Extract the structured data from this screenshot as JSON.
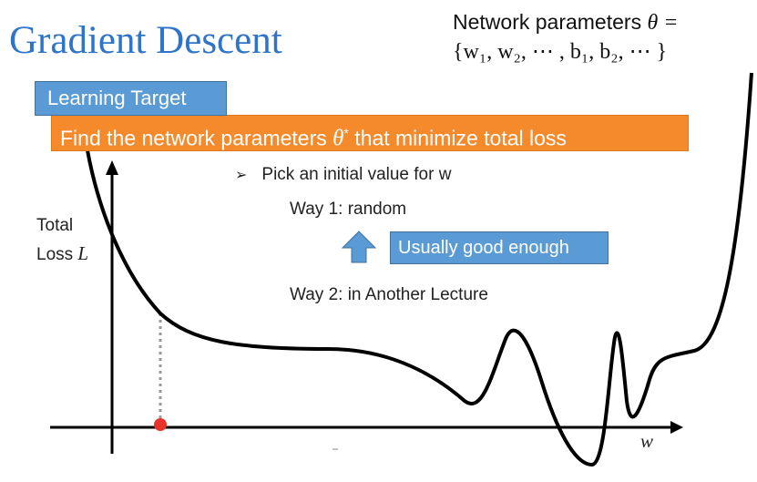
{
  "slide": {
    "title": "Gradient Descent",
    "params_line1": "Network parameters",
    "params_theta": "θ =",
    "params_line2": "{w₁, w₂, ⋯ , b₁, b₂, ⋯ }"
  },
  "learning_target": {
    "label": "Learning Target",
    "banner_before": "Find the network parameters ",
    "banner_theta": "θ",
    "banner_star": "*",
    "banner_after": " that minimize total loss"
  },
  "steps": {
    "bullet": "Pick an initial value for w",
    "way1": "Way 1: random",
    "note": "Usually good enough",
    "way2": "Way 2: in Another Lecture"
  },
  "axes": {
    "ylabel_line1": "Total",
    "ylabel_line2": "Loss",
    "ylabel_symbol": "L",
    "xlabel": "w"
  },
  "colors": {
    "title": "#2e75c9",
    "box_blue": "#5b9bd5",
    "banner_orange": "#f58a2c",
    "curve": "#000000",
    "initial_point": "#e8322a",
    "dotted_guide": "#999999"
  },
  "icons": {
    "bullet": "arrowhead-bullet-icon",
    "up_arrow": "up-arrow-icon",
    "initial_point": "red-dot-marker"
  }
}
